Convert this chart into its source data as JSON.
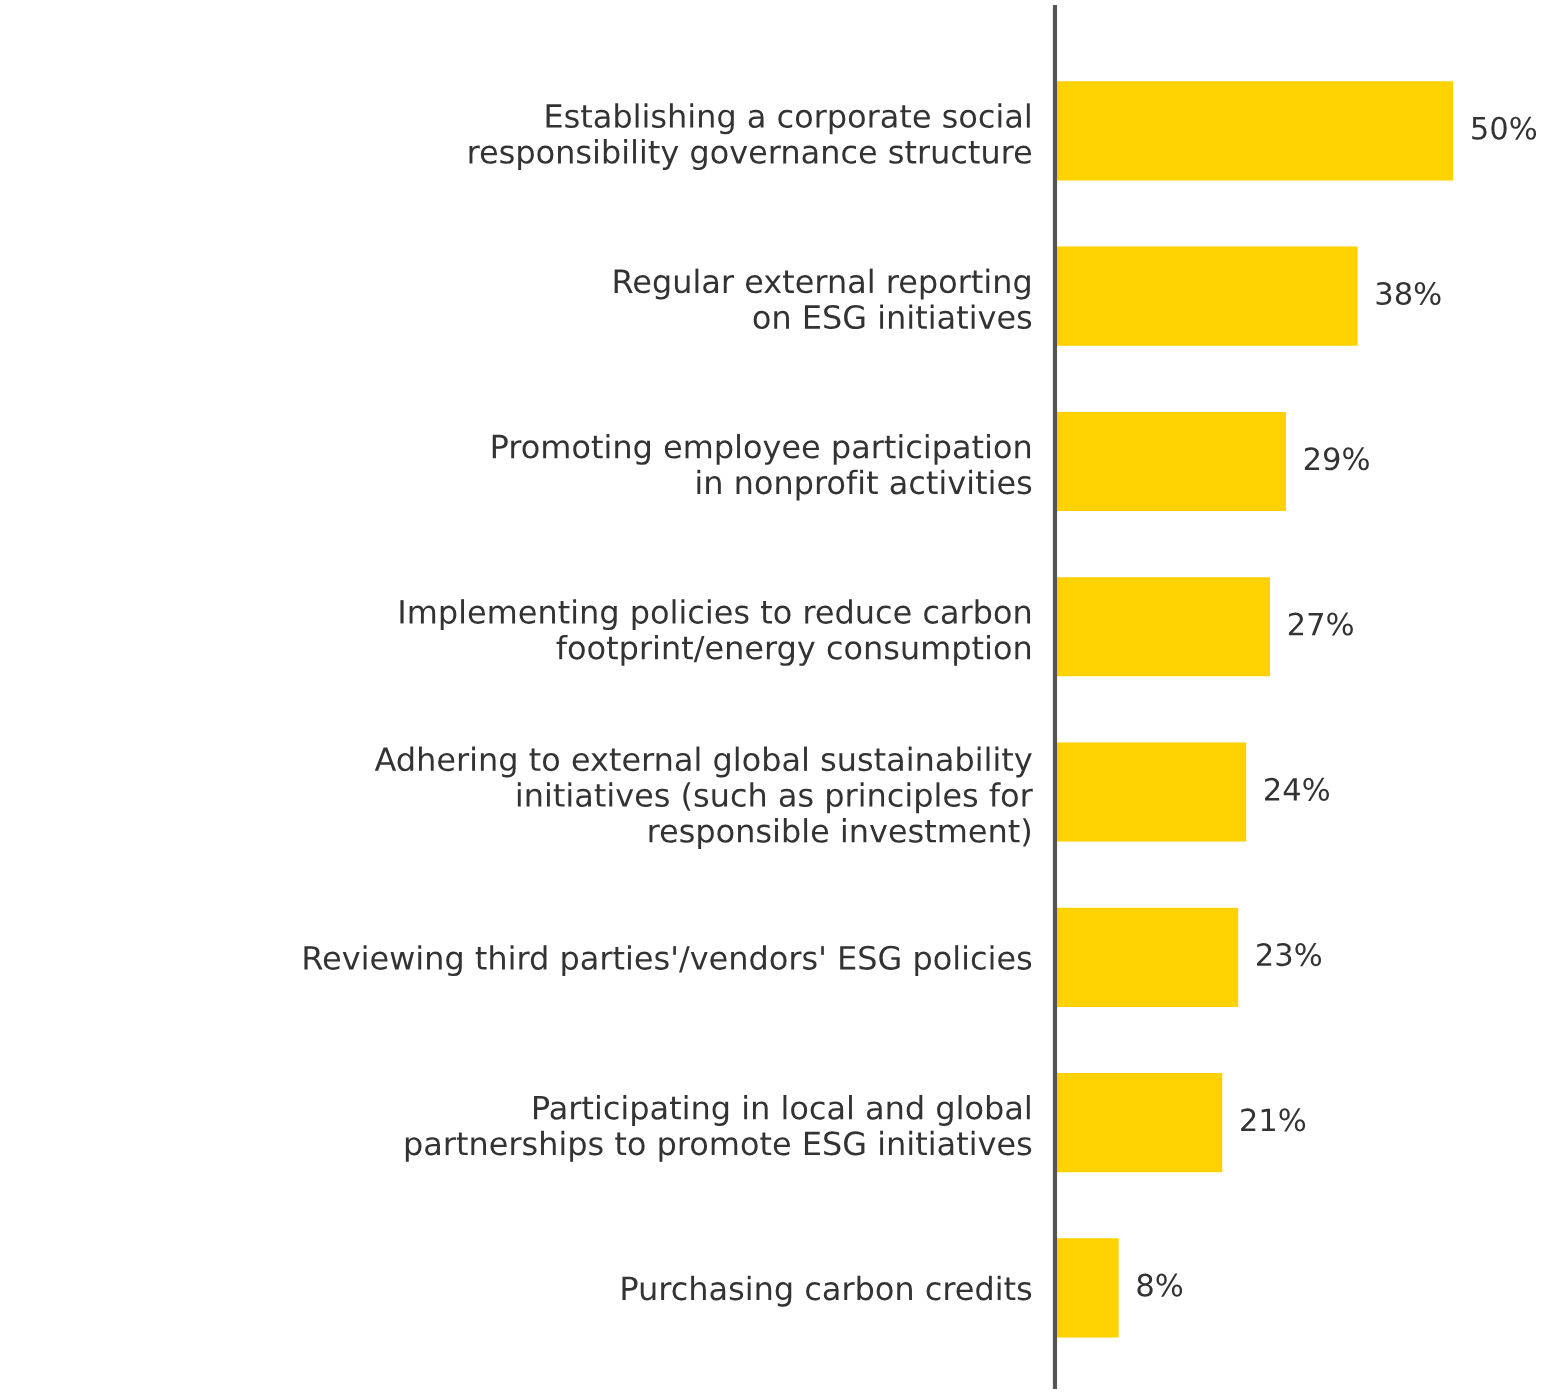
{
  "chart_data": {
    "type": "bar",
    "orientation": "horizontal",
    "categories": [
      "Establishing a corporate social\nresponsibility governance structure",
      "Regular external reporting\non ESG initiatives",
      "Promoting employee participation\nin nonprofit activities",
      "Implementing policies to reduce carbon\nfootprint/energy consumption",
      "Adhering to external global sustainability\ninitiatives (such as principles for\nresponsible investment)",
      "Reviewing third parties'/vendors' ESG policies",
      "Participating in local and global\npartnerships to promote ESG initiatives",
      "Purchasing carbon credits"
    ],
    "values": [
      50,
      38,
      29,
      27,
      24,
      23,
      21,
      8
    ],
    "value_labels": [
      "50%",
      "38%",
      "29%",
      "27%",
      "24%",
      "23%",
      "21%",
      "8%"
    ],
    "color": "#ffd200",
    "grid": false,
    "legend": false
  }
}
